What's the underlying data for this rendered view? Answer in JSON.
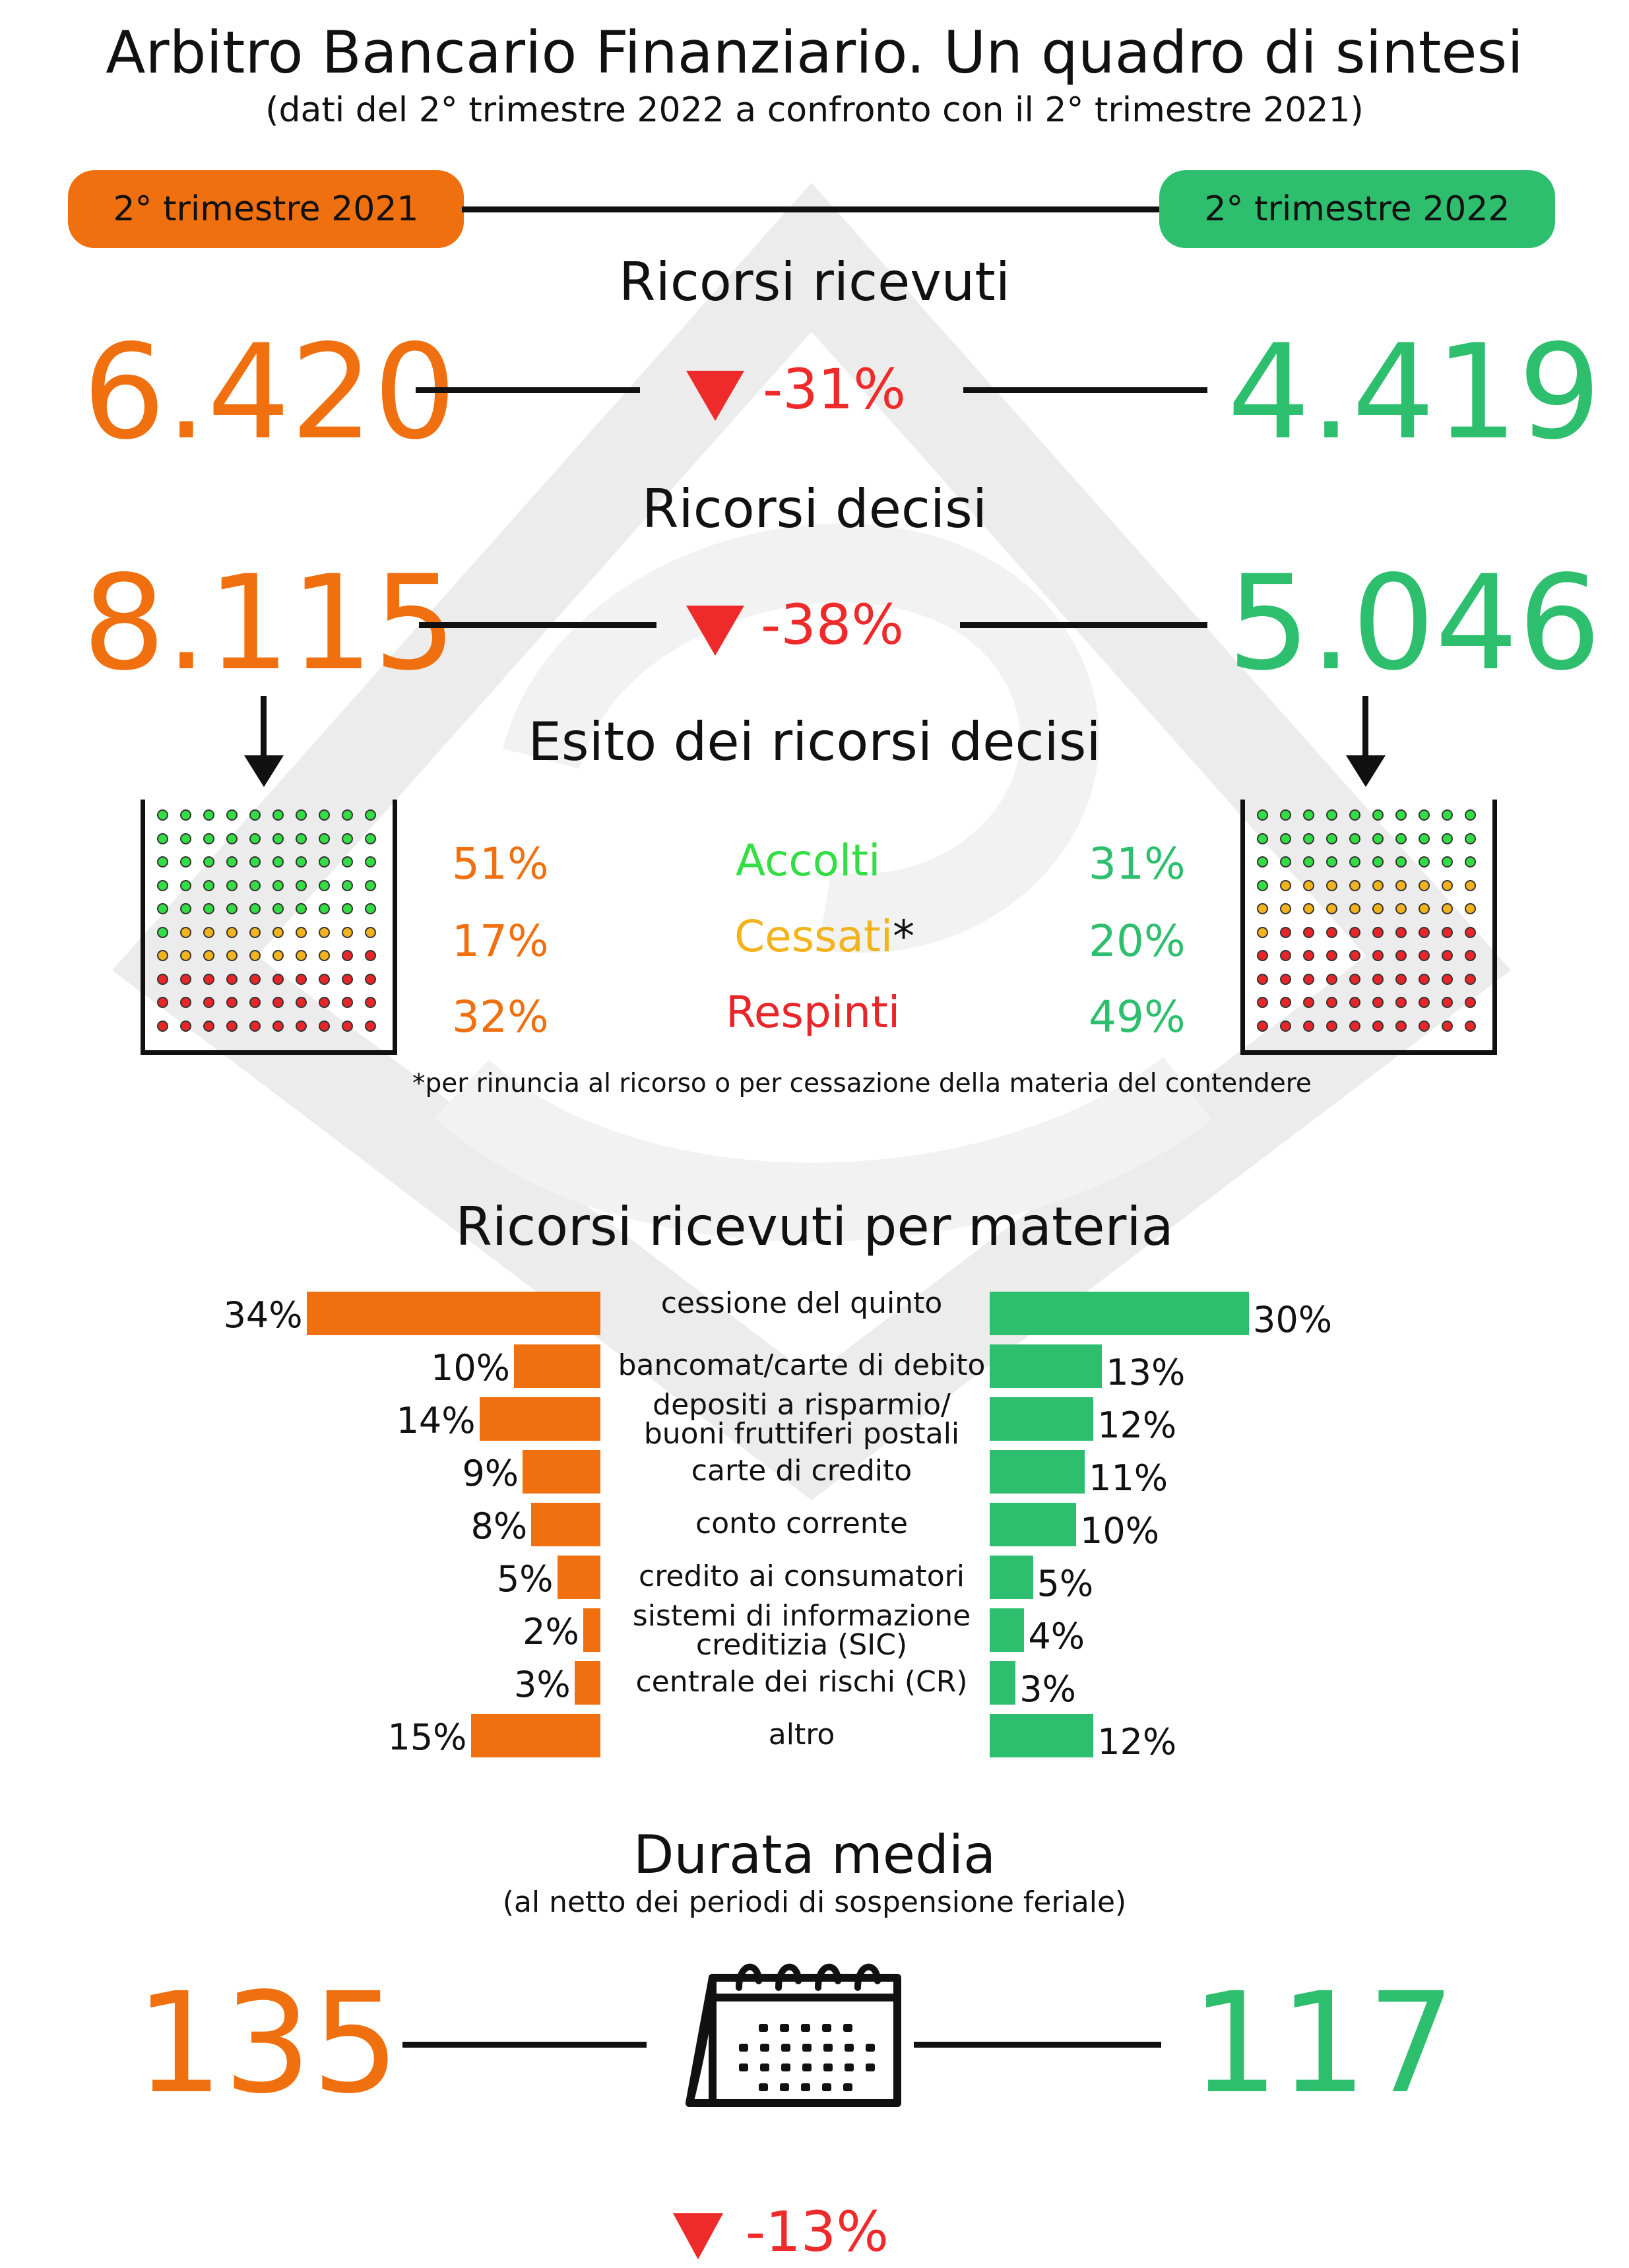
{
  "title": "Arbitro Bancario Finanziario. Un quadro di sintesi",
  "subtitle": "(dati del 2° trimestre 2022 a confronto con il 2° trimestre  2021)",
  "periods": {
    "left": "2° trimestre 2021",
    "right": "2° trimestre 2022"
  },
  "colors": {
    "left": "#f07010",
    "right": "#2ebf6e",
    "decrease": "#ef2a2a",
    "accolti": "#33dd44",
    "cessati": "#f2b31c",
    "respinti": "#e8262a"
  },
  "received": {
    "label": "Ricorsi ricevuti",
    "left": "6.420",
    "right": "4.419",
    "change": "-31%"
  },
  "decided": {
    "label": "Ricorsi decisi",
    "left": "8.115",
    "right": "5.046",
    "change": "-38%"
  },
  "outcomes": {
    "label": "Esito dei ricorsi decisi",
    "rows": [
      {
        "name": "Accolti",
        "left": "51%",
        "right": "31%",
        "suffix": ""
      },
      {
        "name": "Cessati",
        "left": "17%",
        "right": "20%",
        "suffix": "*"
      },
      {
        "name": "Respinti",
        "left": "32%",
        "right": "49%",
        "suffix": ""
      }
    ],
    "footnote": "*per rinuncia al ricorso o per cessazione della materia del contendere"
  },
  "subjects": {
    "label": "Ricorsi ricevuti per materia",
    "rows": [
      {
        "line1": "cessione del quinto",
        "line2": "",
        "left": "34%",
        "right": "30%",
        "lv": 34,
        "rv": 30
      },
      {
        "line1": "bancomat/carte di debito",
        "line2": "",
        "left": "10%",
        "right": "13%",
        "lv": 10,
        "rv": 13
      },
      {
        "line1": "depositi a risparmio/",
        "line2": "buoni fruttiferi postali",
        "left": "14%",
        "right": "12%",
        "lv": 14,
        "rv": 12
      },
      {
        "line1": "carte di credito",
        "line2": "",
        "left": "9%",
        "right": "11%",
        "lv": 9,
        "rv": 11
      },
      {
        "line1": "conto corrente",
        "line2": "",
        "left": "8%",
        "right": "10%",
        "lv": 8,
        "rv": 10
      },
      {
        "line1": "credito ai consumatori",
        "line2": "",
        "left": "5%",
        "right": "5%",
        "lv": 5,
        "rv": 5
      },
      {
        "line1": "sistemi di informazione",
        "line2": "creditizia (SIC)",
        "left": "2%",
        "right": "4%",
        "lv": 2,
        "rv": 4
      },
      {
        "line1": "centrale dei rischi (CR)",
        "line2": "",
        "left": "3%",
        "right": "3%",
        "lv": 3,
        "rv": 3
      },
      {
        "line1": "altro",
        "line2": "",
        "left": "15%",
        "right": "12%",
        "lv": 15,
        "rv": 12
      }
    ]
  },
  "duration": {
    "label": "Durata media",
    "note": "(al netto dei  periodi di sospensione feriale)",
    "left": "135",
    "right": "117",
    "change": "-13%"
  },
  "icons": {
    "decrease": "down-triangle-icon",
    "arrow": "arrow-down-icon",
    "calendar": "calendar-icon"
  }
}
